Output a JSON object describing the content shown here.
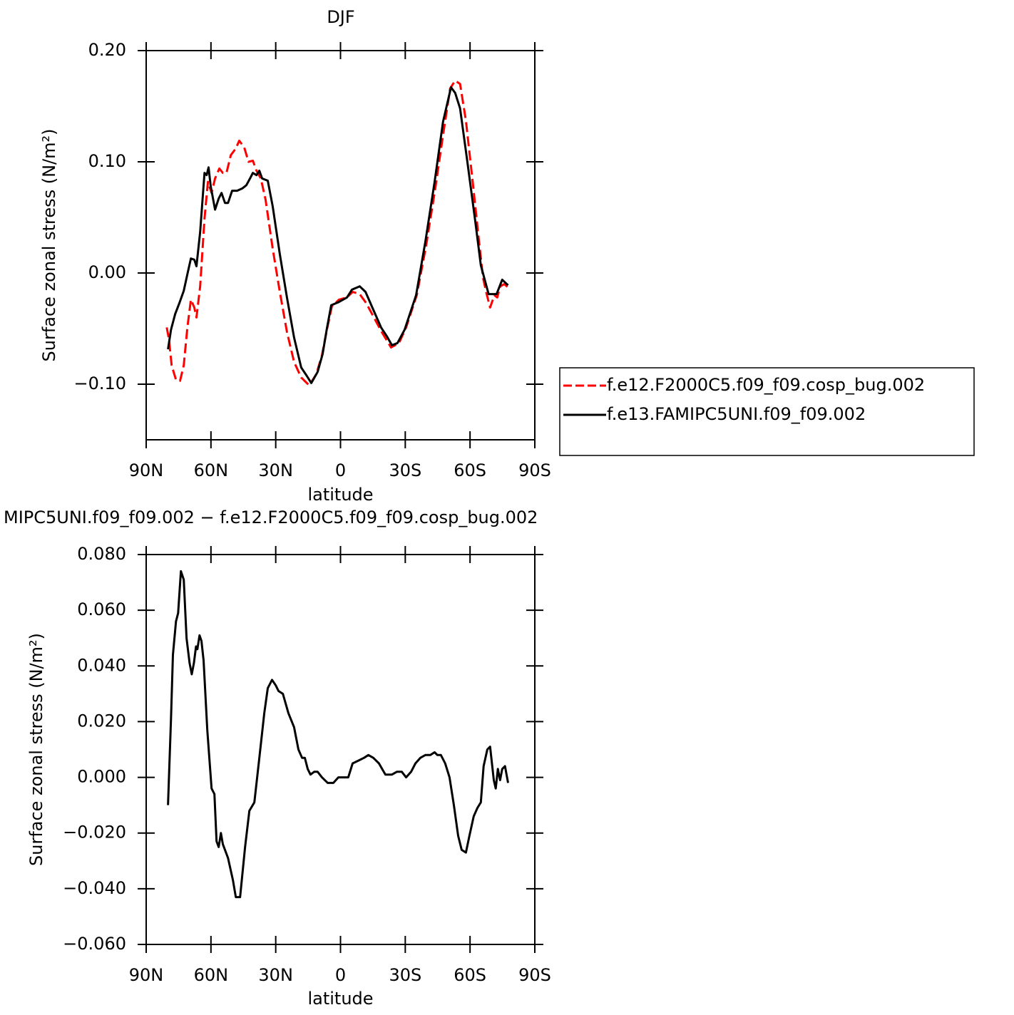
{
  "chart_data": [
    {
      "type": "line",
      "title": "DJF",
      "xlabel": "latitude",
      "ylabel": "Surface zonal stress (N/m²)",
      "xlim": [
        90,
        -90
      ],
      "xticks": [
        {
          "value": 90,
          "label": "90N"
        },
        {
          "value": 60,
          "label": "60N"
        },
        {
          "value": 30,
          "label": "30N"
        },
        0,
        {
          "value": -30,
          "label": "30S"
        },
        {
          "value": -60,
          "label": "60S"
        },
        {
          "value": -90,
          "label": "90S"
        }
      ],
      "ylim": [
        -0.15,
        0.2
      ],
      "yticks": [
        {
          "value": 0.2,
          "label": "0.20"
        },
        {
          "value": 0.1,
          "label": "0.10"
        },
        {
          "value": 0,
          "label": "0.00"
        },
        {
          "value": -0.1,
          "label": "−0.10"
        }
      ],
      "legend": "outside-right",
      "series": [
        {
          "name": "f.e12.F2000C5.f09_f09.cosp_bug.002",
          "color": "#ff0000",
          "line_style": "dashed",
          "x": [
            80.5,
            79.5,
            78.2,
            76.2,
            74.3,
            72.6,
            70.9,
            69.3,
            67.7,
            66.7,
            65,
            63,
            61.4,
            59.7,
            58.1,
            56.1,
            54.5,
            52.8,
            50.8,
            48.5,
            46.9,
            44.6,
            42.6,
            40.6,
            38.9,
            36.9,
            34.7,
            31.4,
            28.1,
            24.8,
            21.5,
            18.2,
            14.5,
            11.2,
            8.6,
            6.3,
            4,
            0.7,
            -3,
            -5.6,
            -8.9,
            -11.9,
            -15.2,
            -19.1,
            -23.4,
            -27.1,
            -30.4,
            -35.3,
            -39.6,
            -43.9,
            -47.5,
            -50.8,
            -53.1,
            -55.4,
            -58.1,
            -61.4,
            -64,
            -66,
            -67.7,
            -69.3,
            -71.3,
            -72.6,
            -74,
            -75.9,
            -77.6
          ],
          "values": [
            -0.049,
            -0.059,
            -0.083,
            -0.096,
            -0.097,
            -0.083,
            -0.049,
            -0.024,
            -0.031,
            -0.04,
            -0.012,
            0.049,
            0.082,
            0.072,
            0.085,
            0.094,
            0.09,
            0.09,
            0.106,
            0.112,
            0.119,
            0.113,
            0.1,
            0.101,
            0.092,
            0.085,
            0.066,
            0.022,
            -0.017,
            -0.053,
            -0.08,
            -0.094,
            -0.101,
            -0.091,
            -0.074,
            -0.051,
            -0.03,
            -0.024,
            -0.022,
            -0.017,
            -0.019,
            -0.027,
            -0.039,
            -0.053,
            -0.067,
            -0.063,
            -0.049,
            -0.02,
            0.024,
            0.076,
            0.124,
            0.166,
            0.173,
            0.17,
            0.137,
            0.079,
            0.031,
            -0.004,
            -0.019,
            -0.031,
            -0.02,
            -0.022,
            -0.012,
            -0.01,
            -0.013
          ]
        },
        {
          "name": "f.e13.FAMIPC5UNI.f09_f09.002",
          "color": "#000000",
          "line_style": "solid",
          "x": [
            79.9,
            78.5,
            76.6,
            74.6,
            72.6,
            70.9,
            69.3,
            67.7,
            66.7,
            65,
            63,
            62,
            61.1,
            60.1,
            58.1,
            56.4,
            55.1,
            53.5,
            52.1,
            50.2,
            47.9,
            45.5,
            43.6,
            41.9,
            40.6,
            38.9,
            37.6,
            36.3,
            33.7,
            31.4,
            28.1,
            24.8,
            21.5,
            18.2,
            15.8,
            13.5,
            10.6,
            8.3,
            6.3,
            4.3,
            0.7,
            -3,
            -5.3,
            -8.9,
            -11.6,
            -15.2,
            -18.8,
            -21.5,
            -23.8,
            -26.4,
            -29.7,
            -35,
            -39.3,
            -43.6,
            -47.5,
            -51.2,
            -53.1,
            -55.4,
            -58.7,
            -62.4,
            -65,
            -68.6,
            -72.3,
            -74.9,
            -77.6
          ],
          "values": [
            -0.0686,
            -0.051,
            -0.037,
            -0.027,
            -0.016,
            -0.001,
            0.013,
            0.012,
            0.006,
            0.037,
            0.09,
            0.088,
            0.095,
            0.078,
            0.057,
            0.067,
            0.072,
            0.063,
            0.063,
            0.074,
            0.074,
            0.076,
            0.079,
            0.085,
            0.09,
            0.088,
            0.092,
            0.085,
            0.083,
            0.06,
            0.017,
            -0.022,
            -0.058,
            -0.085,
            -0.092,
            -0.099,
            -0.089,
            -0.073,
            -0.05,
            -0.029,
            -0.026,
            -0.022,
            -0.015,
            -0.012,
            -0.017,
            -0.033,
            -0.049,
            -0.057,
            -0.065,
            -0.063,
            -0.051,
            -0.02,
            0.028,
            0.082,
            0.136,
            0.167,
            0.162,
            0.148,
            0.101,
            0.047,
            0.007,
            -0.019,
            -0.019,
            -0.006,
            -0.011
          ]
        }
      ]
    },
    {
      "type": "line",
      "title": "MIPC5UNI.f09_f09.002 − f.e12.F2000C5.f09_f09.cosp_bug.002",
      "xlabel": "latitude",
      "ylabel": "Surface zonal stress (N/m²)",
      "xlim": [
        90,
        -90
      ],
      "xticks": [
        {
          "value": 90,
          "label": "90N"
        },
        {
          "value": 60,
          "label": "60N"
        },
        {
          "value": 30,
          "label": "30N"
        },
        0,
        {
          "value": -30,
          "label": "30S"
        },
        {
          "value": -60,
          "label": "60S"
        },
        {
          "value": -90,
          "label": "90S"
        }
      ],
      "ylim": [
        -0.06,
        0.08
      ],
      "yticks": [
        {
          "value": 0.08,
          "label": "0.080"
        },
        {
          "value": 0.06,
          "label": "0.060"
        },
        {
          "value": 0.04,
          "label": "0.040"
        },
        {
          "value": 0.02,
          "label": "0.020"
        },
        {
          "value": 0,
          "label": "0.000"
        },
        {
          "value": -0.02,
          "label": "−0.020"
        },
        {
          "value": -0.04,
          "label": "−0.040"
        },
        {
          "value": -0.06,
          "label": "−0.060"
        }
      ],
      "series": [
        {
          "color": "#000000",
          "line_style": "solid",
          "x": [
            79.9,
            78.5,
            77.6,
            76.2,
            75.2,
            73.9,
            72.6,
            71.3,
            69.9,
            68.9,
            67.9,
            66.9,
            66.3,
            65.3,
            64.4,
            63.4,
            61.7,
            59.7,
            58.4,
            57.4,
            56.4,
            55.4,
            54.5,
            52.1,
            49.8,
            48.5,
            46.5,
            44.2,
            42.2,
            39.9,
            37.6,
            35.3,
            33.7,
            31.7,
            30,
            28.7,
            26.7,
            24.1,
            21.5,
            19.5,
            17.8,
            16.5,
            15.2,
            13.9,
            12.2,
            10.6,
            8.6,
            5.9,
            3.3,
            1,
            -1.3,
            -3.6,
            -5.6,
            -8.3,
            -10.9,
            -12.9,
            -15.2,
            -17.8,
            -20.8,
            -23.8,
            -26.1,
            -28.4,
            -30.4,
            -32.7,
            -34.7,
            -37,
            -39.3,
            -41.6,
            -43.6,
            -44.9,
            -46.5,
            -48.5,
            -50.5,
            -52.5,
            -54.5,
            -56.1,
            -58.1,
            -59.7,
            -61.7,
            -63.4,
            -65,
            -66.3,
            -68,
            -69.3,
            -71,
            -71.9,
            -72.9,
            -73.9,
            -74.9,
            -76.2,
            -77.6
          ],
          "values": [
            -0.01,
            0.021,
            0.044,
            0.056,
            0.059,
            0.074,
            0.071,
            0.05,
            0.041,
            0.037,
            0.041,
            0.047,
            0.046,
            0.051,
            0.049,
            0.042,
            0.017,
            -0.004,
            -0.006,
            -0.023,
            -0.025,
            -0.02,
            -0.024,
            -0.029,
            -0.037,
            -0.043,
            -0.043,
            -0.025,
            -0.012,
            -0.009,
            0.007,
            0.023,
            0.032,
            0.035,
            0.033,
            0.031,
            0.03,
            0.023,
            0.018,
            0.01,
            0.007,
            0.007,
            0.003,
            0.001,
            0.002,
            0.002,
            0,
            -0.002,
            -0.002,
            0,
            0,
            0,
            0.005,
            0.006,
            0.007,
            0.008,
            0.007,
            0.005,
            0.001,
            0.001,
            0.002,
            0.002,
            0,
            0.002,
            0.005,
            0.007,
            0.008,
            0.008,
            0.009,
            0.008,
            0.008,
            0.005,
            0,
            -0.01,
            -0.021,
            -0.026,
            -0.027,
            -0.021,
            -0.014,
            -0.011,
            -0.009,
            0.004,
            0.01,
            0.011,
            -0.001,
            -0.004,
            0.003,
            -0.001,
            0.003,
            0.004,
            -0.002
          ]
        }
      ]
    }
  ]
}
